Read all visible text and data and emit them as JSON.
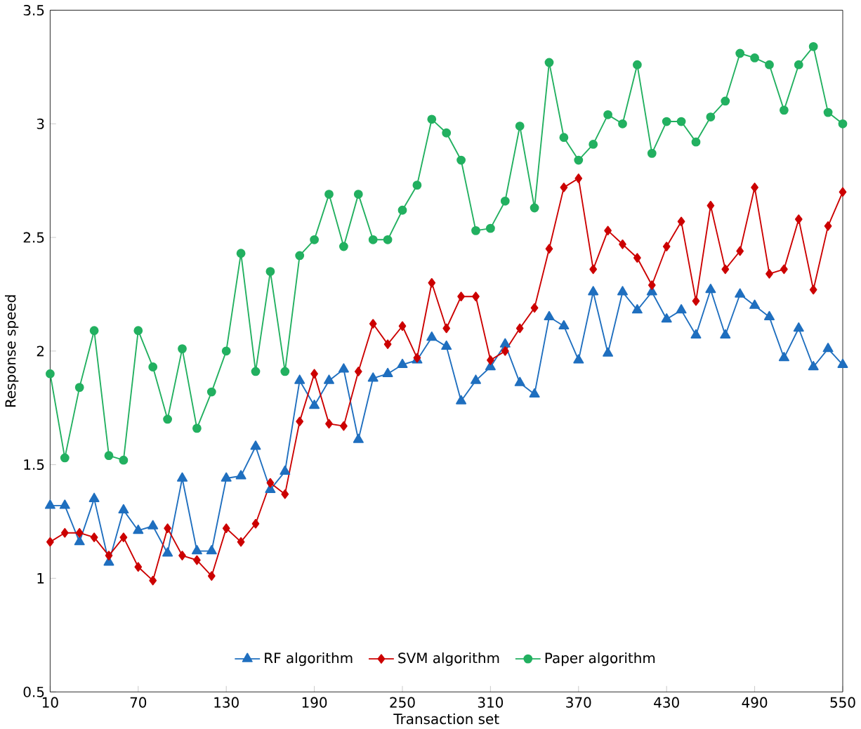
{
  "chart_data": {
    "type": "line",
    "xlabel": "Transaction set",
    "ylabel": "Response speed",
    "x": [
      10,
      20,
      30,
      40,
      50,
      60,
      70,
      80,
      90,
      100,
      110,
      120,
      130,
      140,
      150,
      160,
      170,
      180,
      190,
      200,
      210,
      220,
      230,
      240,
      250,
      260,
      270,
      280,
      290,
      300,
      310,
      320,
      330,
      340,
      350,
      360,
      370,
      380,
      390,
      400,
      410,
      420,
      430,
      440,
      450,
      460,
      470,
      480,
      490,
      500,
      510,
      520,
      530,
      540,
      550
    ],
    "series": [
      {
        "name": "RF algorithm",
        "color": "#1f6fbf",
        "marker": "triangle",
        "values": [
          1.32,
          1.32,
          1.16,
          1.35,
          1.07,
          1.3,
          1.21,
          1.23,
          1.11,
          1.44,
          1.12,
          1.12,
          1.44,
          1.45,
          1.58,
          1.39,
          1.47,
          1.87,
          1.76,
          1.87,
          1.92,
          1.61,
          1.88,
          1.9,
          1.94,
          1.96,
          2.06,
          2.02,
          1.78,
          1.87,
          1.93,
          2.03,
          1.86,
          1.81,
          2.15,
          2.11,
          1.96,
          2.26,
          1.99,
          2.26,
          2.18,
          2.26,
          2.14,
          2.18,
          2.07,
          2.27,
          2.07,
          2.25,
          2.2,
          2.15,
          1.97,
          2.1,
          1.93,
          2.01,
          1.94
        ]
      },
      {
        "name": "SVM algorithm",
        "color": "#cc0000",
        "marker": "diamond",
        "values": [
          1.16,
          1.2,
          1.2,
          1.18,
          1.1,
          1.18,
          1.05,
          0.99,
          1.22,
          1.1,
          1.08,
          1.01,
          1.22,
          1.16,
          1.24,
          1.42,
          1.37,
          1.69,
          1.9,
          1.68,
          1.67,
          1.91,
          2.12,
          2.03,
          2.11,
          1.97,
          2.3,
          2.1,
          2.24,
          2.24,
          1.96,
          2.0,
          2.1,
          2.19,
          2.45,
          2.72,
          2.76,
          2.36,
          2.53,
          2.47,
          2.41,
          2.29,
          2.46,
          2.57,
          2.22,
          2.64,
          2.36,
          2.44,
          2.72,
          2.34,
          2.36,
          2.58,
          2.27,
          2.55,
          2.7
        ]
      },
      {
        "name": "Paper algorithm",
        "color": "#22b060",
        "marker": "circle",
        "values": [
          1.9,
          1.53,
          1.84,
          2.09,
          1.54,
          1.52,
          2.09,
          1.93,
          1.7,
          2.01,
          1.66,
          1.82,
          2.0,
          2.43,
          1.91,
          2.35,
          1.91,
          2.42,
          2.49,
          2.69,
          2.46,
          2.69,
          2.49,
          2.49,
          2.62,
          2.73,
          3.02,
          2.96,
          2.84,
          2.53,
          2.54,
          2.66,
          2.99,
          2.63,
          3.27,
          2.94,
          2.84,
          2.91,
          3.04,
          3.0,
          3.26,
          2.87,
          3.01,
          3.01,
          2.92,
          3.03,
          3.1,
          3.31,
          3.29,
          3.26,
          3.06,
          3.26,
          3.34,
          3.05,
          3.0
        ]
      }
    ],
    "xlim": [
      10,
      550
    ],
    "xticks": [
      10,
      70,
      130,
      190,
      250,
      310,
      370,
      430,
      490,
      550
    ],
    "ylim": [
      0.5,
      3.5
    ],
    "yticks": [
      0.5,
      1,
      1.5,
      2,
      2.5,
      3,
      3.5
    ],
    "legend": "bottom",
    "line_style": "solid"
  }
}
